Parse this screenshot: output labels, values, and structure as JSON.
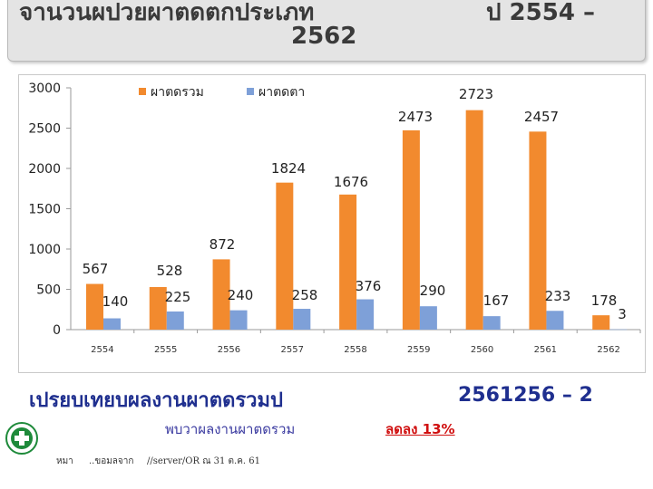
{
  "header": {
    "line1_left": "จานวนผปวยผาตดตกประเภท",
    "line1_right": "ป 2554 –",
    "line2": "2562"
  },
  "chart_data": {
    "type": "bar",
    "categories": [
      "2554",
      "2555",
      "2556",
      "2557",
      "2558",
      "2559",
      "2560",
      "2561",
      "2562"
    ],
    "series": [
      {
        "name": "ผาตดรวม",
        "color": "#f28a2e",
        "values": [
          567,
          528,
          872,
          1824,
          1676,
          2473,
          2723,
          2457,
          178
        ]
      },
      {
        "name": "ผาตดตา",
        "color": "#7ea0d8",
        "values": [
          140,
          225,
          240,
          258,
          376,
          290,
          167,
          233,
          3
        ]
      }
    ],
    "total_labels": [
      "567",
      "528",
      "872",
      "1824",
      "1676",
      "2473",
      "2723",
      "2457",
      "178"
    ],
    "eye_labels": [
      "140",
      "225",
      "240",
      "258",
      "376",
      "290",
      "167",
      "233",
      "3"
    ],
    "yticks": [
      "0",
      "500",
      "1000",
      "1500",
      "2000",
      "2500",
      "3000"
    ],
    "ylim": [
      0,
      3000
    ],
    "legend_position": "top",
    "grid": false
  },
  "footer": {
    "subtitle": "เปรยบเทยบผลงานผาตดรวมป",
    "subtitle_right": "2561256 – 2",
    "summary": "พบวาผลงานผาตดรวม",
    "decrease": "ลดลง 13%",
    "footnote_1": "หมา",
    "footnote_2": "..ขอมลจาก",
    "footnote_3": "//server/OR ณ 31 ต.ค. 61"
  }
}
